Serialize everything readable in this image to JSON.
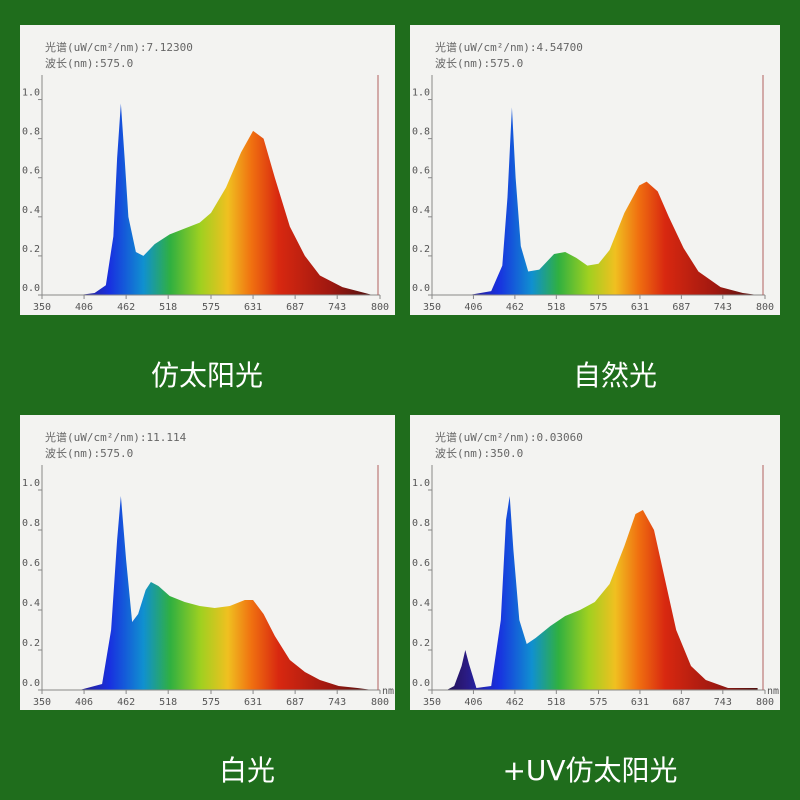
{
  "chart_data": [
    {
      "type": "area",
      "title": "仿太阳光",
      "spectrum_label": "光谱(uW/cm²/nm):7.12300",
      "wavelength_label": "波长(nm):575.0",
      "x": [
        350,
        400,
        420,
        435,
        445,
        450,
        455,
        460,
        465,
        475,
        485,
        500,
        520,
        540,
        560,
        575,
        595,
        615,
        631,
        645,
        660,
        680,
        700,
        720,
        750,
        780,
        790
      ],
      "values": [
        0,
        0,
        0.01,
        0.05,
        0.3,
        0.7,
        0.98,
        0.7,
        0.4,
        0.22,
        0.2,
        0.26,
        0.31,
        0.34,
        0.37,
        0.42,
        0.55,
        0.73,
        0.84,
        0.8,
        0.6,
        0.35,
        0.2,
        0.1,
        0.04,
        0.01,
        0
      ],
      "xlim": [
        350,
        800
      ],
      "ylim": [
        0,
        1.1
      ],
      "xticks": [
        350,
        406,
        462,
        518,
        575,
        631,
        687,
        743,
        800
      ],
      "yticks": [
        {
          "value": 0,
          "label": "0.0"
        },
        0.2,
        0.4,
        0.6,
        0.8,
        {
          "value": 1,
          "label": "1.0"
        }
      ]
    },
    {
      "type": "area",
      "title": "自然光",
      "spectrum_label": "光谱(uW/cm²/nm):4.54700",
      "wavelength_label": "波长(nm):575.0",
      "x": [
        400,
        430,
        445,
        452,
        458,
        463,
        470,
        480,
        495,
        515,
        530,
        545,
        560,
        575,
        590,
        610,
        630,
        640,
        655,
        670,
        690,
        710,
        740,
        770,
        790
      ],
      "values": [
        0,
        0.02,
        0.15,
        0.5,
        0.96,
        0.6,
        0.25,
        0.12,
        0.13,
        0.21,
        0.22,
        0.19,
        0.15,
        0.16,
        0.23,
        0.42,
        0.56,
        0.58,
        0.53,
        0.4,
        0.24,
        0.12,
        0.04,
        0.01,
        0
      ],
      "xlim": [
        350,
        800
      ],
      "ylim": [
        0,
        1.1
      ],
      "xticks": [
        350,
        406,
        462,
        518,
        575,
        631,
        687,
        743,
        800
      ],
      "yticks": [
        {
          "value": 0,
          "label": "0.0"
        },
        0.2,
        0.4,
        0.6,
        0.8,
        {
          "value": 1,
          "label": "1.0"
        }
      ]
    },
    {
      "type": "area",
      "title": "白光",
      "spectrum_label": "光谱(uW/cm²/nm):11.114",
      "wavelength_label": "波长(nm):575.0",
      "xlabel": "nm",
      "x": [
        400,
        430,
        442,
        450,
        455,
        462,
        470,
        478,
        488,
        495,
        505,
        520,
        540,
        560,
        580,
        600,
        620,
        631,
        645,
        660,
        680,
        700,
        720,
        745,
        770,
        790
      ],
      "values": [
        0,
        0.03,
        0.3,
        0.75,
        0.97,
        0.65,
        0.34,
        0.38,
        0.5,
        0.54,
        0.52,
        0.47,
        0.44,
        0.42,
        0.41,
        0.42,
        0.45,
        0.45,
        0.38,
        0.27,
        0.15,
        0.09,
        0.05,
        0.02,
        0.01,
        0
      ],
      "xlim": [
        350,
        800
      ],
      "ylim": [
        0,
        1.1
      ],
      "xticks": [
        350,
        406,
        462,
        518,
        575,
        631,
        687,
        743,
        800
      ],
      "yticks": [
        {
          "value": 0,
          "label": "0.0"
        },
        0.2,
        0.4,
        0.6,
        0.8,
        {
          "value": 1,
          "label": "1.0"
        }
      ]
    },
    {
      "type": "area",
      "title": "+UV仿太阳光",
      "spectrum_label": "光谱(uW/cm²/nm):0.03060",
      "wavelength_label": "波长(nm):350.0",
      "xlabel": "nm",
      "x": [
        370,
        380,
        390,
        395,
        400,
        410,
        430,
        443,
        450,
        455,
        460,
        468,
        478,
        490,
        510,
        530,
        550,
        570,
        590,
        610,
        625,
        635,
        650,
        665,
        680,
        700,
        720,
        750,
        790
      ],
      "values": [
        0,
        0.02,
        0.12,
        0.2,
        0.13,
        0.01,
        0.02,
        0.35,
        0.85,
        0.97,
        0.7,
        0.35,
        0.23,
        0.26,
        0.32,
        0.37,
        0.4,
        0.44,
        0.53,
        0.72,
        0.88,
        0.9,
        0.8,
        0.55,
        0.3,
        0.12,
        0.05,
        0.01,
        0.01
      ],
      "xlim": [
        350,
        800
      ],
      "ylim": [
        0,
        1.1
      ],
      "xticks": [
        350,
        406,
        462,
        518,
        575,
        631,
        687,
        743,
        800
      ],
      "yticks": [
        {
          "value": 0,
          "label": "0.0"
        },
        0.2,
        0.4,
        0.6,
        0.8,
        {
          "value": 1,
          "label": "1.0"
        }
      ]
    }
  ]
}
